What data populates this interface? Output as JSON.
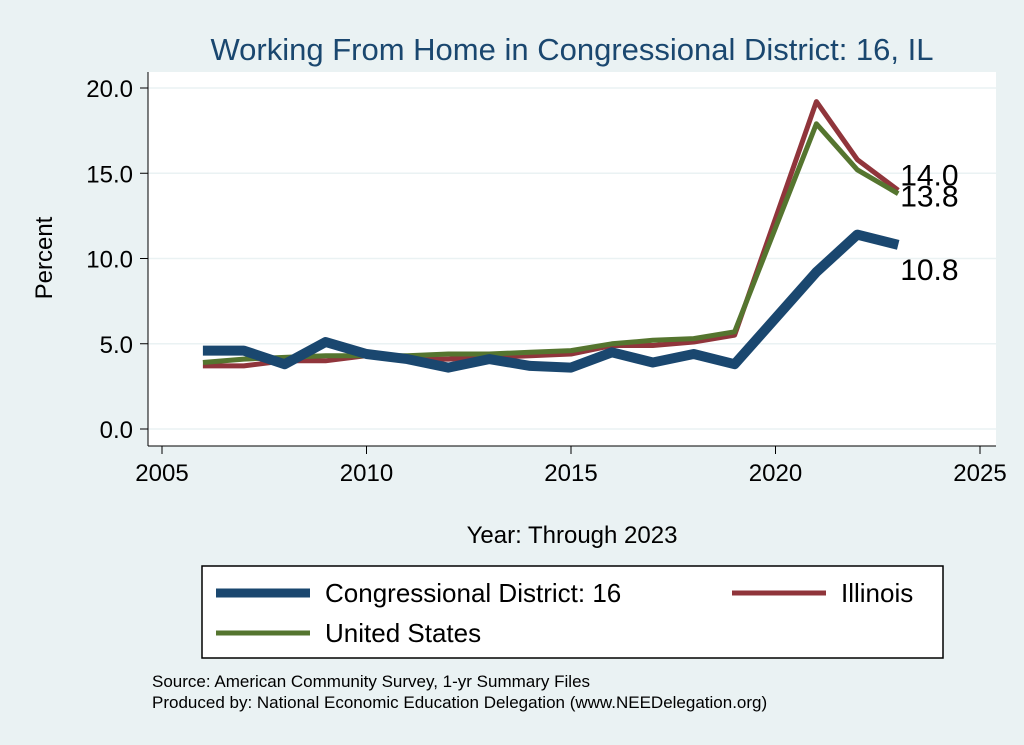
{
  "chart_data": {
    "type": "line",
    "title": "Working From Home in Congressional District: 16, IL",
    "xlabel": "Year: Through 2023",
    "ylabel": "Percent",
    "xlim": [
      2005,
      2025
    ],
    "ylim": [
      0,
      20
    ],
    "x_ticks": [
      "2005",
      "2010",
      "2015",
      "2020",
      "2025"
    ],
    "y_ticks": [
      "0.0",
      "5.0",
      "10.0",
      "15.0",
      "20.0"
    ],
    "grid": true,
    "legend_position": "bottom",
    "x": [
      2006,
      2007,
      2008,
      2009,
      2010,
      2011,
      2012,
      2013,
      2014,
      2015,
      2016,
      2017,
      2018,
      2019,
      2021,
      2022,
      2023
    ],
    "series": [
      {
        "name": "Congressional District: 16",
        "color": "#1a476f",
        "values": [
          4.6,
          4.6,
          3.8,
          5.1,
          4.4,
          4.1,
          3.6,
          4.1,
          3.7,
          3.6,
          4.5,
          3.9,
          4.4,
          3.8,
          9.2,
          11.4,
          10.8
        ],
        "end_label": "10.8"
      },
      {
        "name": "Illinois",
        "color": "#90353b",
        "values": [
          3.7,
          3.7,
          4.0,
          4.0,
          4.3,
          4.1,
          4.1,
          4.2,
          4.3,
          4.4,
          4.9,
          4.9,
          5.1,
          5.5,
          19.2,
          15.8,
          14.0
        ],
        "end_label": "14.0"
      },
      {
        "name": "United States",
        "color": "#55752f",
        "values": [
          3.9,
          4.1,
          4.2,
          4.3,
          4.3,
          4.3,
          4.4,
          4.4,
          4.5,
          4.6,
          5.0,
          5.2,
          5.3,
          5.7,
          17.9,
          15.2,
          13.8
        ],
        "end_label": "13.8"
      }
    ]
  },
  "notes": {
    "source": "Source: American Community Survey, 1-yr Summary Files",
    "produced_by": "Produced by: National Economic Education Delegation (www.NEEDelegation.org)"
  }
}
